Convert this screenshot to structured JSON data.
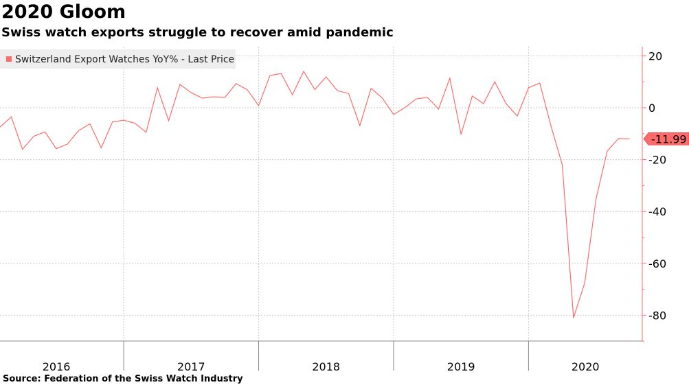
{
  "title": "2020 Gloom",
  "subtitle": "Swiss watch exports struggle to recover amid pandemic",
  "source": "Source: Federation of the Swiss Watch Industry",
  "colors": {
    "series": "#ff6b6b",
    "axis": "#ff6b6b",
    "grid": "#cccccc",
    "legend_bg": "#eeeeee"
  },
  "chart_data": {
    "type": "line",
    "title": "2020 Gloom",
    "xlabel": "",
    "ylabel": "",
    "ylim": [
      -90,
      23
    ],
    "yticks": [
      20,
      0,
      -20,
      -40,
      -60,
      -80
    ],
    "ytick_labels": [
      "20",
      "0",
      "-20",
      "-40",
      "-60",
      "-80"
    ],
    "xtick_labels": [
      "2016",
      "2017",
      "2018",
      "2019",
      "2020"
    ],
    "x_start": "2016-02",
    "x_end": "2020-10",
    "frequency": "monthly",
    "legend": {
      "position": "top-left",
      "entries": [
        "Switzerland Export Watches YoY% - Last Price"
      ]
    },
    "last_value_label": "-11.99",
    "grid": true,
    "series": [
      {
        "name": "Switzerland Export Watches YoY% - Last Price",
        "values": [
          -7.5,
          -3.5,
          -16,
          -11,
          -9.3,
          -15.8,
          -14,
          -8.8,
          -6.2,
          -15.5,
          -5.5,
          -4.8,
          -6,
          -9.5,
          7.7,
          -5,
          9,
          5.8,
          3.7,
          4.2,
          4,
          9.3,
          6.9,
          0.8,
          12.4,
          13.2,
          5,
          14,
          7,
          11.9,
          6.6,
          5.5,
          -6.9,
          7.5,
          3.7,
          -2.6,
          0,
          3.4,
          4,
          -0.5,
          11.4,
          -10.3,
          4.5,
          1.6,
          10,
          1.6,
          -3.2,
          7.7,
          9.5,
          -7.1,
          -22,
          -81,
          -67.5,
          -35.2,
          -16.7,
          -11.9,
          -11.99
        ]
      }
    ]
  }
}
